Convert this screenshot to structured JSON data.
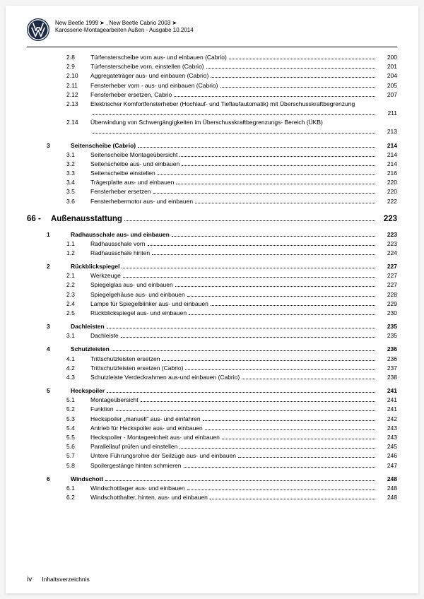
{
  "header": {
    "line1": "New Beetle 1999 ➤ , New Beetle Cabrio 2003 ➤",
    "line2": "Karosserie-Montagearbeiten Außen - Ausgabe 10.2014"
  },
  "chapter": {
    "num": "66 -",
    "title": "Außenausstattung",
    "page": "223"
  },
  "rows": [
    {
      "lvl": 2,
      "num": "2.8",
      "title": "Türfensterscheibe vorn aus- und einbauen (Cabrio)",
      "page": "200"
    },
    {
      "lvl": 2,
      "num": "2.9",
      "title": "Türfensterscheibe vorn, einstellen (Cabrio)",
      "page": "201"
    },
    {
      "lvl": 2,
      "num": "2.10",
      "title": "Aggregateträger aus- und einbauen (Cabrio)",
      "page": "204"
    },
    {
      "lvl": 2,
      "num": "2.11",
      "title": "Fensterheber vorn - aus- und einbauen (Cabrio)",
      "page": "205"
    },
    {
      "lvl": 2,
      "num": "2.12",
      "title": "Fensterheber ersetzen, Cabrio",
      "page": "207"
    },
    {
      "lvl": 2,
      "num": "2.13",
      "title": "Elektrischer Komfortfensterheber (Hochlauf- und Tieflaufautomatik) mit Überschusskraftbegrenzung",
      "page": "211",
      "multi": true
    },
    {
      "lvl": 2,
      "num": "2.14",
      "title": "Überwindung von Schwergängigkeiten im Überschusskraftbegrenzungs- Bereich (ÜKB)",
      "page": "213",
      "multi": true
    },
    {
      "spacer": true
    },
    {
      "lvl": 1,
      "num": "3",
      "title": "Seitenscheibe (Cabrio)",
      "page": "214",
      "bold": true
    },
    {
      "lvl": 2,
      "num": "3.1",
      "title": "Seitenscheibe Montageübersicht",
      "page": "214"
    },
    {
      "lvl": 2,
      "num": "3.2",
      "title": "Seitenscheibe aus- und einbauen",
      "page": "214"
    },
    {
      "lvl": 2,
      "num": "3.3",
      "title": "Seitenscheibe einstellen",
      "page": "216"
    },
    {
      "lvl": 2,
      "num": "3.4",
      "title": "Trägerplatte aus- und einbauen",
      "page": "220"
    },
    {
      "lvl": 2,
      "num": "3.5",
      "title": "Fensterheber ersetzen",
      "page": "220"
    },
    {
      "lvl": 2,
      "num": "3.6",
      "title": "Fensterhebermotor aus- und einbauen",
      "page": "222"
    }
  ],
  "rows2": [
    {
      "lvl": 1,
      "num": "1",
      "title": "Radhausschale aus- und einbauen",
      "page": "223",
      "bold": true
    },
    {
      "lvl": 2,
      "num": "1.1",
      "title": "Radhausschale vorn",
      "page": "223"
    },
    {
      "lvl": 2,
      "num": "1.2",
      "title": "Radhausschale hinten",
      "page": "224"
    },
    {
      "spacer": true
    },
    {
      "lvl": 1,
      "num": "2",
      "title": "Rückblickspiegel",
      "page": "227",
      "bold": true
    },
    {
      "lvl": 2,
      "num": "2.1",
      "title": "Werkzeuge",
      "page": "227"
    },
    {
      "lvl": 2,
      "num": "2.2",
      "title": "Spiegelglas aus- und einbauen",
      "page": "227"
    },
    {
      "lvl": 2,
      "num": "2.3",
      "title": "Spiegelgehäuse aus- und einbauen",
      "page": "228"
    },
    {
      "lvl": 2,
      "num": "2.4",
      "title": "Lampe für Spiegelblinker aus- und einbauen",
      "page": "229"
    },
    {
      "lvl": 2,
      "num": "2.5",
      "title": "Rückblickspiegel aus- und einbauen",
      "page": "230"
    },
    {
      "spacer": true
    },
    {
      "lvl": 1,
      "num": "3",
      "title": "Dachleisten",
      "page": "235",
      "bold": true
    },
    {
      "lvl": 2,
      "num": "3.1",
      "title": "Dachleiste",
      "page": "235"
    },
    {
      "spacer": true
    },
    {
      "lvl": 1,
      "num": "4",
      "title": "Schutzleisten",
      "page": "236",
      "bold": true
    },
    {
      "lvl": 2,
      "num": "4.1",
      "title": "Trittschutzleisten ersetzen",
      "page": "236"
    },
    {
      "lvl": 2,
      "num": "4.2",
      "title": "Trittschutzleisten ersetzen (Cabrio)",
      "page": "237"
    },
    {
      "lvl": 2,
      "num": "4.3",
      "title": "Schutzleiste Verdeckrahmen aus-und einbauen (Cabrio)",
      "page": "238"
    },
    {
      "spacer": true
    },
    {
      "lvl": 1,
      "num": "5",
      "title": "Heckspoiler",
      "page": "241",
      "bold": true
    },
    {
      "lvl": 2,
      "num": "5.1",
      "title": "Montageübersicht",
      "page": "241"
    },
    {
      "lvl": 2,
      "num": "5.2",
      "title": "Funktion",
      "page": "241"
    },
    {
      "lvl": 2,
      "num": "5.3",
      "title": "Heckspoiler „manuell\" aus- und einfahren",
      "page": "242"
    },
    {
      "lvl": 2,
      "num": "5.4",
      "title": "Antrieb für Heckspoiler aus- und einbauen",
      "page": "243"
    },
    {
      "lvl": 2,
      "num": "5.5",
      "title": "Heckspoiler - Montageeinheit aus- und einbauen",
      "page": "243"
    },
    {
      "lvl": 2,
      "num": "5.6",
      "title": "Parallellauf prüfen und einstellen",
      "page": "245"
    },
    {
      "lvl": 2,
      "num": "5.7",
      "title": "Untere Führungsrohre der Seilzüge aus- und einbauen",
      "page": "246"
    },
    {
      "lvl": 2,
      "num": "5.8",
      "title": "Spoilergestänge hinten schmieren",
      "page": "247"
    },
    {
      "spacer": true
    },
    {
      "lvl": 1,
      "num": "6",
      "title": "Windschott",
      "page": "248",
      "bold": true
    },
    {
      "lvl": 2,
      "num": "6.1",
      "title": "Windschottlager aus- und einbauen",
      "page": "248"
    },
    {
      "lvl": 2,
      "num": "6.2",
      "title": "Windschotthalter, hinten, aus- und einbauen",
      "page": "248"
    }
  ],
  "footer": {
    "pagenum": "iv",
    "label": "Inhaltsverzeichnis"
  }
}
